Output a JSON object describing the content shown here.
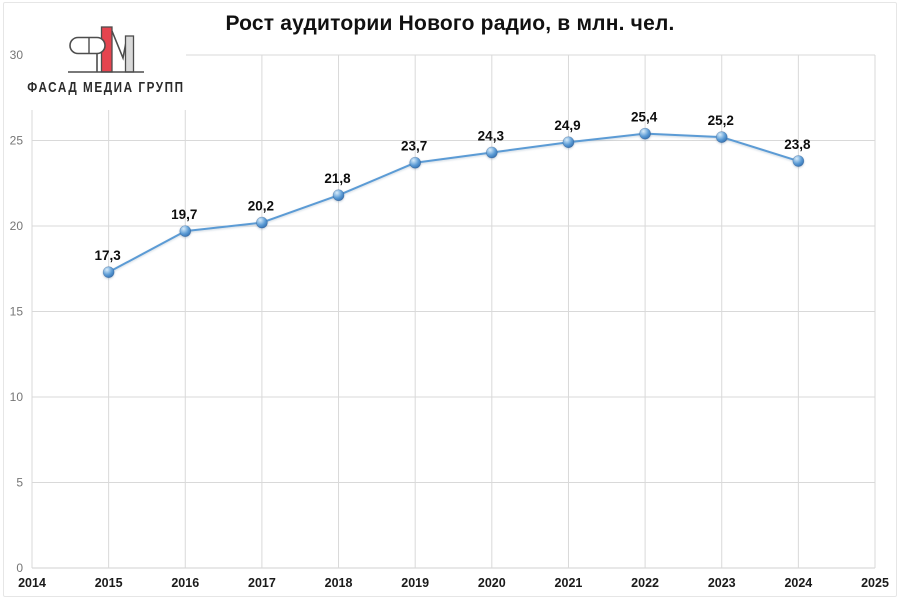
{
  "title": "Рост аудитории Нового радио, в млн. чел.",
  "logo": {
    "text": "ФАСАД МЕДИА ГРУПП",
    "red_color": "#e5444f",
    "outline_color": "#4d4d4d",
    "gray_fill": "#d9d9d9"
  },
  "chart_data": {
    "type": "line",
    "title": "Рост аудитории Нового радио, в млн. чел.",
    "x": [
      2015,
      2016,
      2017,
      2018,
      2019,
      2020,
      2021,
      2022,
      2023,
      2024
    ],
    "values": [
      17.3,
      19.7,
      20.2,
      21.8,
      23.7,
      24.3,
      24.9,
      25.4,
      25.2,
      23.8
    ],
    "point_labels": [
      "17,3",
      "19,7",
      "20,2",
      "21,8",
      "23,7",
      "24,3",
      "24,9",
      "25,4",
      "25,2",
      "23,8"
    ],
    "x_ticks": [
      2014,
      2015,
      2016,
      2017,
      2018,
      2019,
      2020,
      2021,
      2022,
      2023,
      2024,
      2025
    ],
    "y_ticks": [
      0,
      5,
      10,
      15,
      20,
      25,
      30
    ],
    "xlim": [
      2014,
      2025
    ],
    "ylim": [
      0,
      30
    ],
    "grid": true,
    "legend": false,
    "xlabel": "",
    "ylabel": "",
    "line_color": "#5b9bd5",
    "marker_gradient": [
      "#d8ecfa",
      "#5b9bd5",
      "#2a66a8"
    ],
    "gridline_color": "#d9d9d9",
    "axis_line_color": "#d0d0d0",
    "x_tick_color": "#1a1a1a",
    "y_tick_color": "#767676",
    "point_label_color": "#0d0d0d"
  }
}
